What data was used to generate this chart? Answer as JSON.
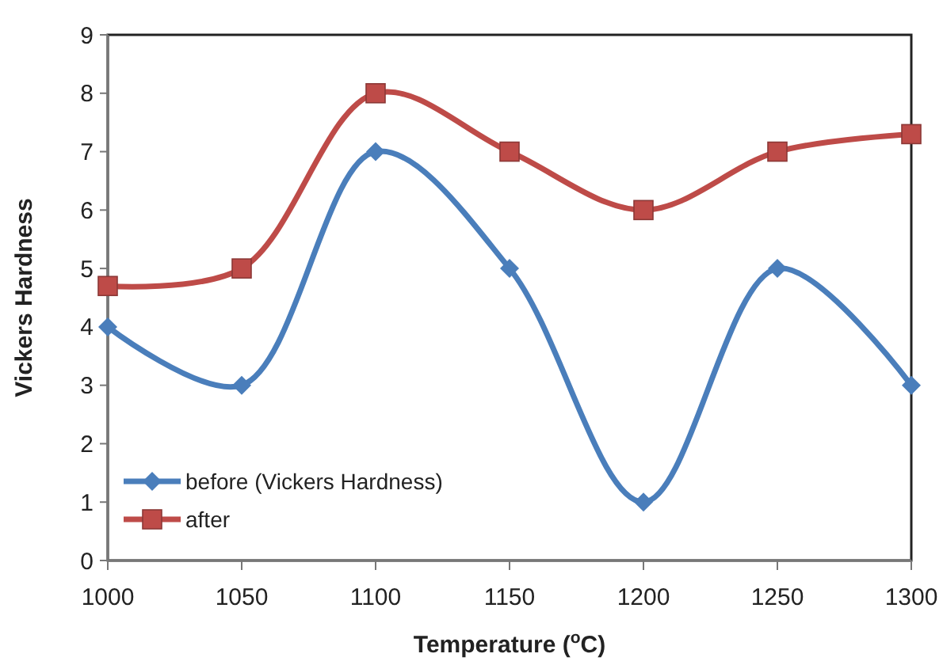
{
  "chart_data": {
    "type": "line",
    "xlabel": "Temperature ($^{o}$C)",
    "ylabel": "Vickers Hardness",
    "x": [
      1000,
      1050,
      1100,
      1150,
      1200,
      1250,
      1300
    ],
    "series": [
      {
        "name": "before (Vickers Hardness)",
        "color": "#4a7ebb",
        "marker": "diamond",
        "values": [
          4,
          3,
          7,
          5,
          1,
          5,
          3
        ]
      },
      {
        "name": "after",
        "color": "#be4b48",
        "marker": "square",
        "values": [
          4.7,
          5,
          8,
          7,
          6,
          7,
          7.3
        ]
      }
    ],
    "xlim": [
      1000,
      1300
    ],
    "xticks": [
      1000,
      1050,
      1100,
      1150,
      1200,
      1250,
      1300
    ],
    "ylim": [
      0,
      9
    ],
    "yticks": [
      0,
      1,
      2,
      3,
      4,
      5,
      6,
      7,
      8,
      9
    ],
    "grid": false,
    "legend": "bottom left",
    "line_style": "solid"
  }
}
